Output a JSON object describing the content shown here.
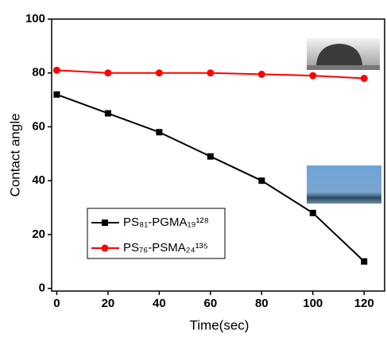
{
  "chart_data": {
    "type": "line",
    "x_label": "Time(sec)",
    "y_label": "Contact angle",
    "x": [
      0,
      20,
      40,
      60,
      80,
      100,
      120
    ],
    "series": [
      {
        "name": "PS₈₁-PGMA₁₉¹²⁸",
        "color": "#000000",
        "marker": "square",
        "values": [
          72,
          65,
          58,
          49,
          40,
          28,
          10
        ]
      },
      {
        "name": "PS₇₆-PSMA₂₄¹³⁵",
        "color": "#ff0000",
        "marker": "circle",
        "values": [
          81,
          80,
          80,
          80,
          79.5,
          79,
          78
        ]
      }
    ],
    "xlim": [
      -2,
      128
    ],
    "xticks": [
      0,
      20,
      40,
      60,
      80,
      100,
      120
    ],
    "ylim": [
      -1,
      100
    ],
    "yticks": [
      0,
      20,
      40,
      60,
      80,
      100
    ],
    "grid": false
  }
}
